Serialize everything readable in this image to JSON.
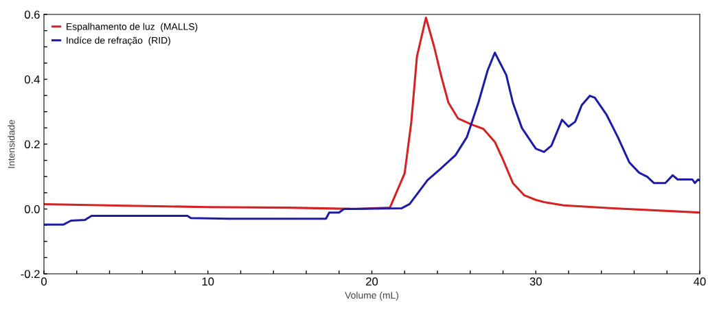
{
  "chart_data": {
    "type": "line",
    "xlabel": "Volume (mL)",
    "ylabel": "Intensidade",
    "xlim": [
      0,
      40
    ],
    "ylim": [
      -0.2,
      0.6
    ],
    "xticks": [
      0,
      {
        "value": 2,
        "label": null
      },
      {
        "value": 4,
        "label": null
      },
      {
        "value": 6,
        "label": null
      },
      {
        "value": 8,
        "label": null
      },
      10,
      {
        "value": 12,
        "label": null
      },
      {
        "value": 14,
        "label": null
      },
      {
        "value": 16,
        "label": null
      },
      {
        "value": 18,
        "label": null
      },
      20,
      {
        "value": 22,
        "label": null
      },
      {
        "value": 24,
        "label": null
      },
      {
        "value": 26,
        "label": null
      },
      {
        "value": 28,
        "label": null
      },
      30,
      {
        "value": 32,
        "label": null
      },
      {
        "value": 34,
        "label": null
      },
      {
        "value": 36,
        "label": null
      },
      {
        "value": 38,
        "label": null
      },
      40
    ],
    "yticks": [
      -0.2,
      {
        "value": -0.15,
        "label": null
      },
      {
        "value": -0.1,
        "label": null
      },
      {
        "value": -0.05,
        "label": null
      },
      {
        "value": 0,
        "label": "0.0"
      },
      {
        "value": 0.05,
        "label": null
      },
      {
        "value": 0.1,
        "label": null
      },
      {
        "value": 0.15,
        "label": null
      },
      0.2,
      {
        "value": 0.25,
        "label": null
      },
      {
        "value": 0.3,
        "label": null
      },
      {
        "value": 0.35,
        "label": null
      },
      0.4,
      {
        "value": 0.45,
        "label": null
      },
      {
        "value": 0.5,
        "label": null
      },
      {
        "value": 0.55,
        "label": null
      },
      0.6
    ],
    "legend": "top left",
    "grid": false,
    "marker": "none",
    "line_style": "solid",
    "series": [
      {
        "name": "Espalhamento de luz  (MALLS)",
        "color": "#d42323",
        "x": [
          0,
          5,
          10,
          15,
          19,
          21.1,
          22.0,
          22.4,
          22.75,
          23.3,
          23.8,
          24.25,
          24.67,
          25.26,
          26.1,
          26.8,
          27.5,
          28.0,
          28.6,
          29.3,
          30.0,
          30.5,
          31.7,
          34.7,
          40
        ],
        "values": [
          0.015,
          0.01,
          0.006,
          0.004,
          0.0,
          0.004,
          0.11,
          0.265,
          0.47,
          0.59,
          0.5,
          0.406,
          0.328,
          0.279,
          0.26,
          0.247,
          0.207,
          0.152,
          0.08,
          0.042,
          0.028,
          0.021,
          0.011,
          0.002,
          -0.011
        ]
      },
      {
        "name": "Indíce de refração  (RID)",
        "color": "#1c1ca8",
        "x": [
          0,
          1.2,
          1.65,
          2.5,
          2.9,
          8.75,
          8.96,
          11.3,
          17.2,
          17.4,
          18.0,
          18.3,
          21.8,
          22.3,
          23.4,
          24.1,
          25.1,
          25.8,
          26.5,
          27.06,
          27.5,
          28.2,
          28.6,
          29.15,
          30.0,
          30.5,
          30.95,
          31.6,
          32.0,
          32.4,
          32.8,
          33.3,
          33.6,
          34.3,
          35.0,
          35.7,
          36.3,
          36.8,
          37.2,
          37.9,
          38.35,
          38.65,
          39.55,
          39.7,
          39.9,
          40
        ],
        "values": [
          -0.048,
          -0.048,
          -0.036,
          -0.034,
          -0.021,
          -0.021,
          -0.028,
          -0.03,
          -0.03,
          -0.011,
          -0.011,
          0.0,
          0.002,
          0.015,
          0.089,
          0.12,
          0.166,
          0.222,
          0.328,
          0.427,
          0.482,
          0.413,
          0.328,
          0.25,
          0.186,
          0.176,
          0.195,
          0.275,
          0.254,
          0.269,
          0.32,
          0.349,
          0.343,
          0.292,
          0.222,
          0.144,
          0.112,
          0.099,
          0.08,
          0.08,
          0.104,
          0.091,
          0.091,
          0.08,
          0.091,
          0.088
        ]
      }
    ]
  }
}
